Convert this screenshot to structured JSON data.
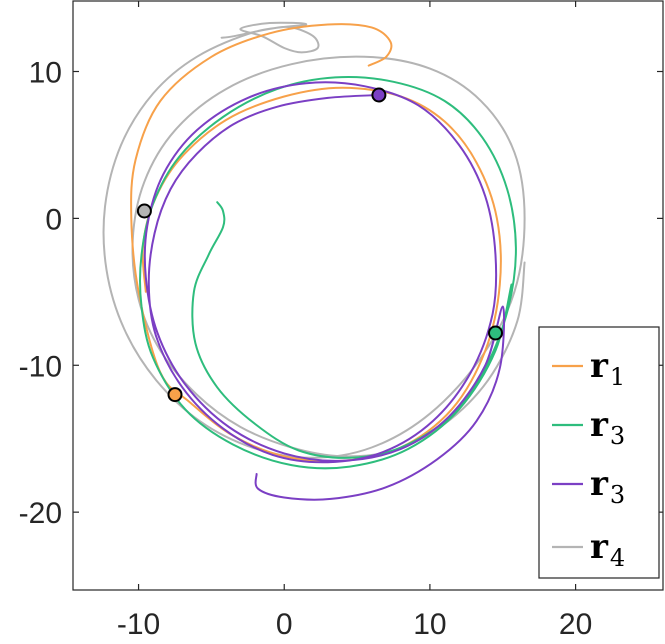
{
  "chart_data": {
    "type": "line",
    "title": "",
    "xlabel": "",
    "ylabel": "",
    "xlim": [
      -14.5,
      26
    ],
    "ylim": [
      -25.3,
      14.8
    ],
    "x_ticks": [
      -10,
      0,
      10,
      20
    ],
    "y_ticks": [
      10,
      0,
      -10,
      -20
    ],
    "x_tick_labels": [
      "-10",
      "0",
      "10",
      "20"
    ],
    "y_tick_labels": [
      "10",
      "0",
      "-10",
      "-20"
    ],
    "grid": false,
    "legend_position": "bottom-right",
    "legend": [
      {
        "base": "r",
        "sub": "1",
        "color": "#f7a14a"
      },
      {
        "base": "r",
        "sub": "3",
        "color": "#2ebd7d"
      },
      {
        "base": "r",
        "sub": "3",
        "color": "#7b3fc4"
      },
      {
        "base": "r",
        "sub": "4",
        "color": "#b4b4b4"
      }
    ],
    "series": [
      {
        "color": "#f7a14a",
        "marker": {
          "x": -7.5,
          "y": -12.0
        },
        "points": [
          [
            5.8,
            10.4
          ],
          [
            7.0,
            11.0
          ],
          [
            7.3,
            12.0
          ],
          [
            6.0,
            13.0
          ],
          [
            3.0,
            13.2
          ],
          [
            -1.0,
            12.6
          ],
          [
            -5.0,
            11.0
          ],
          [
            -8.5,
            8.0
          ],
          [
            -10.2,
            4.0
          ],
          [
            -10.5,
            0.0
          ],
          [
            -10.0,
            -5.0
          ],
          [
            -8.5,
            -10.5
          ],
          [
            -6.5,
            -12.5
          ],
          [
            -3.5,
            -14.8
          ],
          [
            0.0,
            -16.2
          ],
          [
            4.0,
            -16.5
          ],
          [
            8.0,
            -15.6
          ],
          [
            11.5,
            -13.0
          ],
          [
            13.8,
            -9.0
          ],
          [
            14.8,
            -4.5
          ],
          [
            14.6,
            0.0
          ],
          [
            13.2,
            3.8
          ],
          [
            11.0,
            6.6
          ],
          [
            8.0,
            8.3
          ],
          [
            4.0,
            8.9
          ],
          [
            0.0,
            8.3
          ],
          [
            -4.0,
            6.7
          ],
          [
            -7.2,
            4.0
          ],
          [
            -9.0,
            1.0
          ],
          [
            -9.7,
            -2.0
          ],
          [
            -9.5,
            -5.0
          ]
        ]
      },
      {
        "color": "#2ebd7d",
        "marker": {
          "x": 14.5,
          "y": -7.8
        },
        "points": [
          [
            -4.6,
            1.1
          ],
          [
            -4.2,
            0.5
          ],
          [
            -4.2,
            -0.6
          ],
          [
            -5.2,
            -2.5
          ],
          [
            -6.2,
            -5.0
          ],
          [
            -6.1,
            -8.5
          ],
          [
            -4.6,
            -11.5
          ],
          [
            -2.0,
            -14.0
          ],
          [
            1.0,
            -15.8
          ],
          [
            4.5,
            -16.3
          ],
          [
            8.0,
            -15.6
          ],
          [
            11.5,
            -13.4
          ],
          [
            13.9,
            -10.0
          ],
          [
            15.4,
            -6.0
          ],
          [
            15.9,
            -2.0
          ],
          [
            15.3,
            2.0
          ],
          [
            13.6,
            5.5
          ],
          [
            11.0,
            8.0
          ],
          [
            7.5,
            9.3
          ],
          [
            3.5,
            9.6
          ],
          [
            -0.5,
            8.8
          ],
          [
            -4.2,
            6.9
          ],
          [
            -7.2,
            4.2
          ],
          [
            -9.0,
            1.0
          ],
          [
            -9.8,
            -2.5
          ],
          [
            -9.8,
            -6.0
          ],
          [
            -9.0,
            -9.5
          ],
          [
            -6.8,
            -13.0
          ],
          [
            -3.5,
            -15.4
          ],
          [
            0.5,
            -16.8
          ],
          [
            4.5,
            -16.9
          ],
          [
            8.5,
            -15.7
          ],
          [
            12.0,
            -13.0
          ],
          [
            14.5,
            -9.0
          ],
          [
            15.6,
            -4.5
          ]
        ]
      },
      {
        "color": "#7b3fc4",
        "marker": {
          "x": 6.5,
          "y": 8.4
        },
        "points": [
          [
            6.5,
            8.4
          ],
          [
            3.0,
            8.2
          ],
          [
            -0.5,
            7.6
          ],
          [
            -3.5,
            6.4
          ],
          [
            -6.0,
            4.4
          ],
          [
            -7.8,
            2.0
          ],
          [
            -8.9,
            -1.0
          ],
          [
            -9.3,
            -4.5
          ],
          [
            -8.8,
            -8.0
          ],
          [
            -7.0,
            -11.5
          ],
          [
            -4.2,
            -14.3
          ],
          [
            -0.8,
            -16.1
          ],
          [
            3.0,
            -16.6
          ],
          [
            6.8,
            -15.9
          ],
          [
            10.2,
            -13.8
          ],
          [
            12.8,
            -10.5
          ],
          [
            14.3,
            -6.5
          ],
          [
            14.5,
            -2.5
          ],
          [
            13.8,
            1.5
          ],
          [
            12.0,
            5.0
          ],
          [
            9.2,
            7.7
          ],
          [
            5.5,
            9.0
          ],
          [
            1.5,
            9.2
          ],
          [
            -2.5,
            8.2
          ],
          [
            -6.0,
            6.0
          ],
          [
            -8.3,
            3.0
          ],
          [
            -9.4,
            -0.5
          ],
          [
            -9.5,
            -4.0
          ],
          [
            -8.7,
            -7.8
          ],
          [
            -6.8,
            -11.3
          ],
          [
            -3.8,
            -14.2
          ],
          [
            0.0,
            -16.0
          ],
          [
            4.0,
            -16.5
          ],
          [
            8.0,
            -15.7
          ],
          [
            11.3,
            -13.5
          ],
          [
            13.8,
            -10.0
          ],
          [
            15.0,
            -6.0
          ],
          [
            14.8,
            -10.2
          ],
          [
            13.2,
            -13.8
          ],
          [
            10.5,
            -16.4
          ],
          [
            7.0,
            -18.3
          ],
          [
            3.2,
            -19.1
          ],
          [
            0.0,
            -19.0
          ],
          [
            -1.8,
            -18.4
          ],
          [
            -1.9,
            -17.4
          ]
        ]
      },
      {
        "color": "#b4b4b4",
        "marker": {
          "x": -9.6,
          "y": 0.5
        },
        "points": [
          [
            -4.3,
            12.3
          ],
          [
            -3.5,
            12.4
          ],
          [
            -1.0,
            12.9
          ],
          [
            0.5,
            13.0
          ],
          [
            2.0,
            12.4
          ],
          [
            2.3,
            11.6
          ],
          [
            1.2,
            11.3
          ],
          [
            0.0,
            11.6
          ],
          [
            -1.5,
            12.4
          ],
          [
            -3.0,
            12.9
          ],
          [
            -1.0,
            13.3
          ],
          [
            1.5,
            13.2
          ],
          [
            -2.0,
            12.7
          ],
          [
            -6.0,
            11.0
          ],
          [
            -9.0,
            8.5
          ],
          [
            -11.2,
            5.0
          ],
          [
            -12.3,
            0.8
          ],
          [
            -12.2,
            -3.5
          ],
          [
            -11.0,
            -7.5
          ],
          [
            -8.8,
            -11.0
          ],
          [
            -5.8,
            -13.8
          ],
          [
            -2.2,
            -15.6
          ],
          [
            1.8,
            -16.3
          ],
          [
            6.0,
            -15.6
          ],
          [
            10.0,
            -13.3
          ],
          [
            13.5,
            -9.5
          ],
          [
            15.8,
            -5.0
          ],
          [
            16.5,
            0.0
          ],
          [
            15.8,
            4.5
          ],
          [
            13.5,
            8.0
          ],
          [
            10.0,
            10.2
          ],
          [
            5.5,
            11.0
          ],
          [
            0.5,
            10.5
          ],
          [
            -4.0,
            8.8
          ],
          [
            -7.5,
            6.0
          ],
          [
            -9.6,
            2.5
          ],
          [
            -10.4,
            -1.5
          ],
          [
            -10.0,
            -5.5
          ],
          [
            -8.5,
            -9.0
          ],
          [
            -6.0,
            -12.0
          ],
          [
            -3.0,
            -14.2
          ],
          [
            0.5,
            -15.6
          ],
          [
            4.0,
            -16.2
          ],
          [
            7.5,
            -15.8
          ],
          [
            11.0,
            -14.0
          ],
          [
            14.0,
            -11.0
          ],
          [
            16.0,
            -7.0
          ],
          [
            16.5,
            -3.0
          ]
        ]
      }
    ]
  }
}
